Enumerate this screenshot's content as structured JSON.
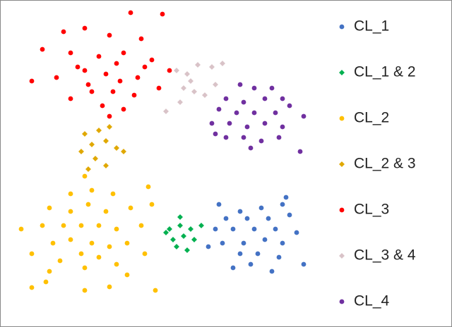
{
  "chart_data": {
    "type": "scatter",
    "xlim": [
      0,
      440
    ],
    "ylim": [
      0,
      464
    ],
    "series": [
      {
        "name": "CL_1",
        "color": "#4472c4",
        "marker": "circle",
        "x": [
          310,
          340,
          370,
          400,
          320,
          350,
          380,
          410,
          305,
          330,
          360,
          390,
          420,
          315,
          345,
          375,
          400,
          295,
          340,
          365,
          395,
          355,
          385,
          430,
          330,
          405
        ],
        "y": [
          174,
          164,
          169,
          174,
          154,
          154,
          154,
          159,
          139,
          139,
          139,
          139,
          134,
          119,
          119,
          124,
          119,
          114,
          104,
          104,
          99,
          89,
          79,
          89,
          84,
          184
        ]
      },
      {
        "name": "CL_1 & 2",
        "color": "#00b050",
        "marker": "diamond",
        "x": [
          240,
          255,
          270,
          285,
          245,
          260,
          275,
          250,
          265,
          255,
          235
        ],
        "y": [
          139,
          144,
          139,
          144,
          124,
          129,
          124,
          114,
          109,
          156,
          134
        ]
      },
      {
        "name": "CL_2",
        "color": "#ffc000",
        "marker": "circle",
        "x": [
          120,
          100,
          130,
          160,
          210,
          70,
          100,
          125,
          150,
          185,
          215,
          30,
          60,
          90,
          115,
          140,
          165,
          200,
          75,
          100,
          130,
          155,
          180,
          45,
          85,
          115,
          140,
          165,
          205,
          70,
          120,
          180,
          45,
          65,
          120,
          155,
          220
        ],
        "y": [
          214,
          189,
          194,
          189,
          199,
          169,
          164,
          174,
          164,
          169,
          174,
          139,
          144,
          144,
          144,
          144,
          139,
          144,
          119,
          124,
          119,
          114,
          119,
          104,
          94,
          104,
          99,
          89,
          104,
          79,
          84,
          74,
          56,
          64,
          52,
          57,
          52
        ]
      },
      {
        "name": "CL_2 & 3",
        "color": "#e0a800",
        "marker": "diamond",
        "x": [
          120,
          140,
          155,
          130,
          150,
          165,
          115,
          135,
          175,
          150,
          125
        ],
        "y": [
          274,
          279,
          284,
          259,
          264,
          254,
          249,
          239,
          249,
          229,
          224
        ]
      },
      {
        "name": "CL_3",
        "color": "#ff0000",
        "marker": "circle",
        "x": [
          185,
          230,
          90,
          120,
          155,
          200,
          60,
          100,
          140,
          175,
          215,
          240,
          45,
          80,
          120,
          150,
          170,
          195,
          130,
          160,
          190,
          225,
          100,
          145,
          175,
          155,
          125,
          110,
          165,
          205
        ],
        "y": [
          446,
          444,
          419,
          424,
          414,
          409,
          394,
          389,
          384,
          389,
          379,
          364,
          349,
          354,
          364,
          359,
          349,
          354,
          334,
          334,
          329,
          339,
          324,
          314,
          309,
          299,
          344,
          369,
          374,
          369
        ]
      },
      {
        "name": "CL_3 & 4",
        "color": "#d9c3c8",
        "marker": "diamond",
        "x": [
          250,
          265,
          280,
          300,
          315,
          260,
          275,
          290,
          305,
          235,
          255,
          270
        ],
        "y": [
          364,
          359,
          372,
          369,
          374,
          339,
          334,
          329,
          344,
          306,
          319,
          349
        ]
      },
      {
        "name": "CL_4",
        "color": "#7030a0",
        "marker": "circle",
        "x": [
          340,
          360,
          385,
          320,
          345,
          375,
          400,
          310,
          335,
          360,
          390,
          410,
          430,
          300,
          325,
          350,
          375,
          400,
          320,
          345,
          370,
          395,
          355,
          425,
          305
        ],
        "y": [
          344,
          339,
          339,
          324,
          319,
          324,
          324,
          309,
          304,
          304,
          304,
          314,
          299,
          289,
          289,
          284,
          289,
          284,
          269,
          269,
          264,
          269,
          254,
          249,
          274
        ]
      }
    ]
  }
}
